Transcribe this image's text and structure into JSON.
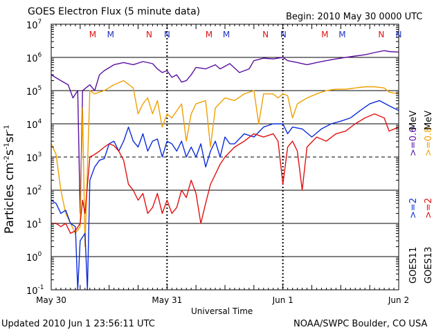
{
  "header": {
    "title": "GOES Electron Flux (5 minute data)",
    "begin": "Begin: 2010 May 30 0000 UTC"
  },
  "footer": {
    "updated": "Updated 2010 Jun  1 23:56:11 UTC",
    "credit": "NOAA/SWPC Boulder, CO USA"
  },
  "axis": {
    "ylabel_base": "Particles cm",
    "ylabel_e1": "-2",
    "ylabel_mid1": "s",
    "ylabel_e2": "-1",
    "ylabel_mid2": "sr",
    "ylabel_e3": "-1",
    "xlabel": "Universal Time"
  },
  "side": {
    "goes11": "GOES11",
    "goes13": "GOES13",
    "b11_2": ">=2",
    "b11_06": ">=0.6",
    "b13_2": ">=2",
    "b13_08": ">=0.8",
    "mev": "MeV"
  },
  "colors": {
    "purple": "#5a0fa0",
    "orange": "#f0a000",
    "blue": "#0a2bd8",
    "red": "#e01010",
    "marker_red": "#e01010",
    "marker_blue": "#2030c0"
  },
  "chart_data": {
    "type": "line",
    "title": "GOES Electron Flux (5 minute data)",
    "xlabel": "Universal Time",
    "ylabel": "Particles cm-2 s-1 sr-1",
    "yscale": "log",
    "ylim": [
      0.1,
      10000000
    ],
    "yticks": [
      "10^-1",
      "10^0",
      "10^1",
      "10^2",
      "10^3",
      "10^4",
      "10^5",
      "10^6",
      "10^7"
    ],
    "xlim_hours": [
      0,
      72
    ],
    "xticks": [
      {
        "label": "May 30",
        "hour": 0
      },
      {
        "label": "May 31",
        "hour": 24
      },
      {
        "label": "Jun 1",
        "hour": 48
      },
      {
        "label": "Jun 2",
        "hour": 72
      }
    ],
    "grid": "horizontal decades, dashed at 10^3",
    "markers": [
      {
        "label": "M",
        "hour": 8.6,
        "color": "red"
      },
      {
        "label": "M",
        "hour": 12.3,
        "color": "blue"
      },
      {
        "label": "N",
        "hour": 20.3,
        "color": "red"
      },
      {
        "label": "N",
        "hour": 24.0,
        "color": "blue"
      },
      {
        "label": "M",
        "hour": 32.7,
        "color": "red"
      },
      {
        "label": "M",
        "hour": 36.3,
        "color": "blue"
      },
      {
        "label": "N",
        "hour": 44.4,
        "color": "red"
      },
      {
        "label": "N",
        "hour": 48.1,
        "color": "blue"
      },
      {
        "label": "M",
        "hour": 56.7,
        "color": "red"
      },
      {
        "label": "M",
        "hour": 60.3,
        "color": "blue"
      },
      {
        "label": "N",
        "hour": 68.4,
        "color": "red"
      },
      {
        "label": "N",
        "hour": 72.0,
        "color": "blue"
      }
    ],
    "series": [
      {
        "name": "GOES11 >=0.6 MeV",
        "color": "purple",
        "points": [
          [
            0,
            300000
          ],
          [
            2,
            200000
          ],
          [
            3.5,
            150000
          ],
          [
            4.5,
            60000
          ],
          [
            5.5,
            100000
          ],
          [
            6,
            20
          ],
          [
            6.5,
            100000
          ],
          [
            8,
            150000
          ],
          [
            9,
            100000
          ],
          [
            10,
            300000
          ],
          [
            11,
            400000
          ],
          [
            13,
            600000
          ],
          [
            15,
            700000
          ],
          [
            17,
            600000
          ],
          [
            19,
            750000
          ],
          [
            21,
            650000
          ],
          [
            22,
            450000
          ],
          [
            23,
            350000
          ],
          [
            24,
            400000
          ],
          [
            25,
            250000
          ],
          [
            26,
            300000
          ],
          [
            27,
            180000
          ],
          [
            28,
            200000
          ],
          [
            29,
            300000
          ],
          [
            30,
            500000
          ],
          [
            32,
            450000
          ],
          [
            34,
            600000
          ],
          [
            35,
            450000
          ],
          [
            37,
            650000
          ],
          [
            39,
            350000
          ],
          [
            41,
            450000
          ],
          [
            42,
            800000
          ],
          [
            44,
            950000
          ],
          [
            46,
            900000
          ],
          [
            48,
            1000000
          ],
          [
            49,
            800000
          ],
          [
            51,
            700000
          ],
          [
            53,
            600000
          ],
          [
            55,
            700000
          ],
          [
            57,
            800000
          ],
          [
            59,
            900000
          ],
          [
            61,
            1000000
          ],
          [
            63,
            1100000
          ],
          [
            65,
            1200000
          ],
          [
            67,
            1400000
          ],
          [
            69,
            1600000
          ],
          [
            70,
            1500000
          ],
          [
            72,
            1450000
          ]
        ]
      },
      {
        "name": "GOES13 >=0.8 MeV",
        "color": "orange",
        "points": [
          [
            0,
            2500
          ],
          [
            1,
            1200
          ],
          [
            2,
            100
          ],
          [
            3,
            20
          ],
          [
            4,
            10
          ],
          [
            5,
            5
          ],
          [
            6,
            8
          ],
          [
            6.5,
            30000
          ],
          [
            7,
            2
          ],
          [
            8,
            100000
          ],
          [
            9,
            80000
          ],
          [
            10,
            90000
          ],
          [
            11,
            100000
          ],
          [
            13,
            150000
          ],
          [
            15,
            200000
          ],
          [
            17,
            120000
          ],
          [
            18,
            20000
          ],
          [
            19,
            40000
          ],
          [
            20,
            60000
          ],
          [
            21,
            20000
          ],
          [
            22,
            50000
          ],
          [
            23,
            8000
          ],
          [
            24,
            20000
          ],
          [
            25,
            15000
          ],
          [
            27,
            40000
          ],
          [
            28,
            3000
          ],
          [
            29,
            20000
          ],
          [
            30,
            40000
          ],
          [
            32,
            50000
          ],
          [
            33,
            2000
          ],
          [
            34,
            30000
          ],
          [
            36,
            60000
          ],
          [
            38,
            50000
          ],
          [
            40,
            80000
          ],
          [
            42,
            100000
          ],
          [
            43,
            10000
          ],
          [
            44,
            80000
          ],
          [
            46,
            80000
          ],
          [
            47,
            60000
          ],
          [
            48,
            80000
          ],
          [
            49,
            70000
          ],
          [
            50,
            15000
          ],
          [
            51,
            40000
          ],
          [
            53,
            60000
          ],
          [
            55,
            80000
          ],
          [
            57,
            100000
          ],
          [
            59,
            110000
          ],
          [
            61,
            110000
          ],
          [
            63,
            120000
          ],
          [
            65,
            130000
          ],
          [
            67,
            130000
          ],
          [
            69,
            120000
          ],
          [
            70,
            90000
          ],
          [
            72,
            80000
          ]
        ]
      },
      {
        "name": "GOES11 >=2 MeV",
        "color": "blue",
        "points": [
          [
            0,
            50
          ],
          [
            1,
            40
          ],
          [
            2,
            20
          ],
          [
            3,
            25
          ],
          [
            4,
            10
          ],
          [
            5,
            8
          ],
          [
            5.5,
            0.1
          ],
          [
            6,
            3
          ],
          [
            7,
            5
          ],
          [
            7.5,
            0.1
          ],
          [
            8,
            200
          ],
          [
            9,
            500
          ],
          [
            10,
            800
          ],
          [
            11,
            900
          ],
          [
            12,
            2500
          ],
          [
            13,
            3000
          ],
          [
            14,
            1500
          ],
          [
            15,
            3000
          ],
          [
            16,
            8000
          ],
          [
            17,
            3000
          ],
          [
            18,
            2000
          ],
          [
            19,
            5000
          ],
          [
            20,
            1500
          ],
          [
            21,
            3000
          ],
          [
            22,
            3500
          ],
          [
            23,
            1000
          ],
          [
            24,
            3000
          ],
          [
            25,
            2500
          ],
          [
            26,
            1500
          ],
          [
            27,
            3000
          ],
          [
            28,
            1000
          ],
          [
            29,
            2000
          ],
          [
            30,
            1000
          ],
          [
            31,
            2500
          ],
          [
            32,
            500
          ],
          [
            33,
            1500
          ],
          [
            34,
            3000
          ],
          [
            35,
            1000
          ],
          [
            36,
            4000
          ],
          [
            37,
            2500
          ],
          [
            38,
            2500
          ],
          [
            40,
            5000
          ],
          [
            42,
            4000
          ],
          [
            44,
            8000
          ],
          [
            46,
            10000
          ],
          [
            48,
            10000
          ],
          [
            49,
            5000
          ],
          [
            50,
            8000
          ],
          [
            52,
            7000
          ],
          [
            54,
            4000
          ],
          [
            56,
            7000
          ],
          [
            58,
            10000
          ],
          [
            60,
            12000
          ],
          [
            62,
            15000
          ],
          [
            64,
            25000
          ],
          [
            66,
            40000
          ],
          [
            68,
            50000
          ],
          [
            70,
            35000
          ],
          [
            72,
            25000
          ]
        ]
      },
      {
        "name": "GOES13 >=2 MeV",
        "color": "red",
        "points": [
          [
            0,
            10
          ],
          [
            1,
            10
          ],
          [
            2,
            8
          ],
          [
            3,
            10
          ],
          [
            4,
            5
          ],
          [
            5,
            6
          ],
          [
            6,
            10
          ],
          [
            6.5,
            50
          ],
          [
            7,
            20
          ],
          [
            8,
            1000
          ],
          [
            9,
            1200
          ],
          [
            10,
            1500
          ],
          [
            11,
            2000
          ],
          [
            12,
            2500
          ],
          [
            13,
            2200
          ],
          [
            14,
            1500
          ],
          [
            15,
            800
          ],
          [
            16,
            150
          ],
          [
            17,
            100
          ],
          [
            18,
            50
          ],
          [
            19,
            80
          ],
          [
            20,
            20
          ],
          [
            21,
            30
          ],
          [
            22,
            80
          ],
          [
            23,
            20
          ],
          [
            24,
            50
          ],
          [
            25,
            20
          ],
          [
            26,
            30
          ],
          [
            27,
            100
          ],
          [
            28,
            60
          ],
          [
            29,
            200
          ],
          [
            30,
            80
          ],
          [
            31,
            10
          ],
          [
            32,
            40
          ],
          [
            33,
            150
          ],
          [
            34,
            300
          ],
          [
            35,
            600
          ],
          [
            36,
            1000
          ],
          [
            38,
            2000
          ],
          [
            40,
            3000
          ],
          [
            42,
            5000
          ],
          [
            44,
            4000
          ],
          [
            46,
            5000
          ],
          [
            47,
            3000
          ],
          [
            48,
            150
          ],
          [
            49,
            2000
          ],
          [
            50,
            3000
          ],
          [
            51,
            1500
          ],
          [
            52,
            100
          ],
          [
            53,
            2000
          ],
          [
            55,
            4000
          ],
          [
            57,
            3000
          ],
          [
            59,
            5000
          ],
          [
            61,
            6000
          ],
          [
            63,
            10000
          ],
          [
            65,
            15000
          ],
          [
            67,
            20000
          ],
          [
            69,
            15000
          ],
          [
            70,
            6000
          ],
          [
            72,
            8000
          ]
        ]
      }
    ]
  }
}
